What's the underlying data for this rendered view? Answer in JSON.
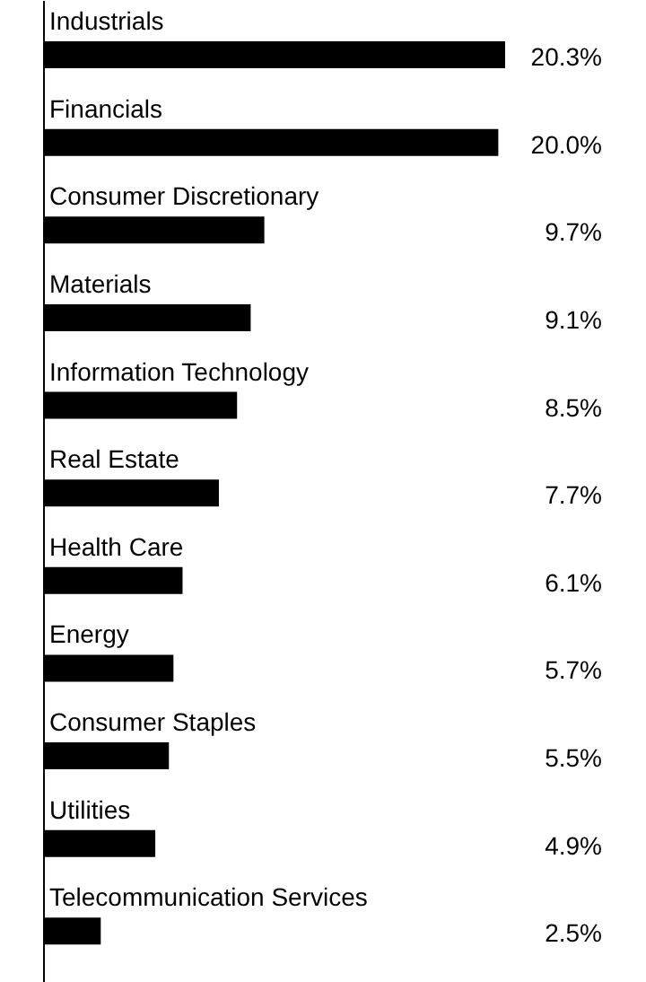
{
  "chart_data": {
    "type": "bar",
    "orientation": "horizontal",
    "color": "#000000",
    "categories": [
      "Industrials",
      "Financials",
      "Consumer Discretionary",
      "Materials",
      "Information Technology",
      "Real Estate",
      "Health Care",
      "Energy",
      "Consumer Staples",
      "Utilities",
      "Telecommunication Services"
    ],
    "values": [
      20.3,
      20.0,
      9.7,
      9.1,
      8.5,
      7.7,
      6.1,
      5.7,
      5.5,
      4.9,
      2.5
    ],
    "value_labels": [
      "20.3%",
      "20.0%",
      "9.7%",
      "9.1%",
      "8.5%",
      "7.7%",
      "6.1%",
      "5.7%",
      "5.5%",
      "4.9%",
      "2.5%"
    ],
    "grid": false
  }
}
